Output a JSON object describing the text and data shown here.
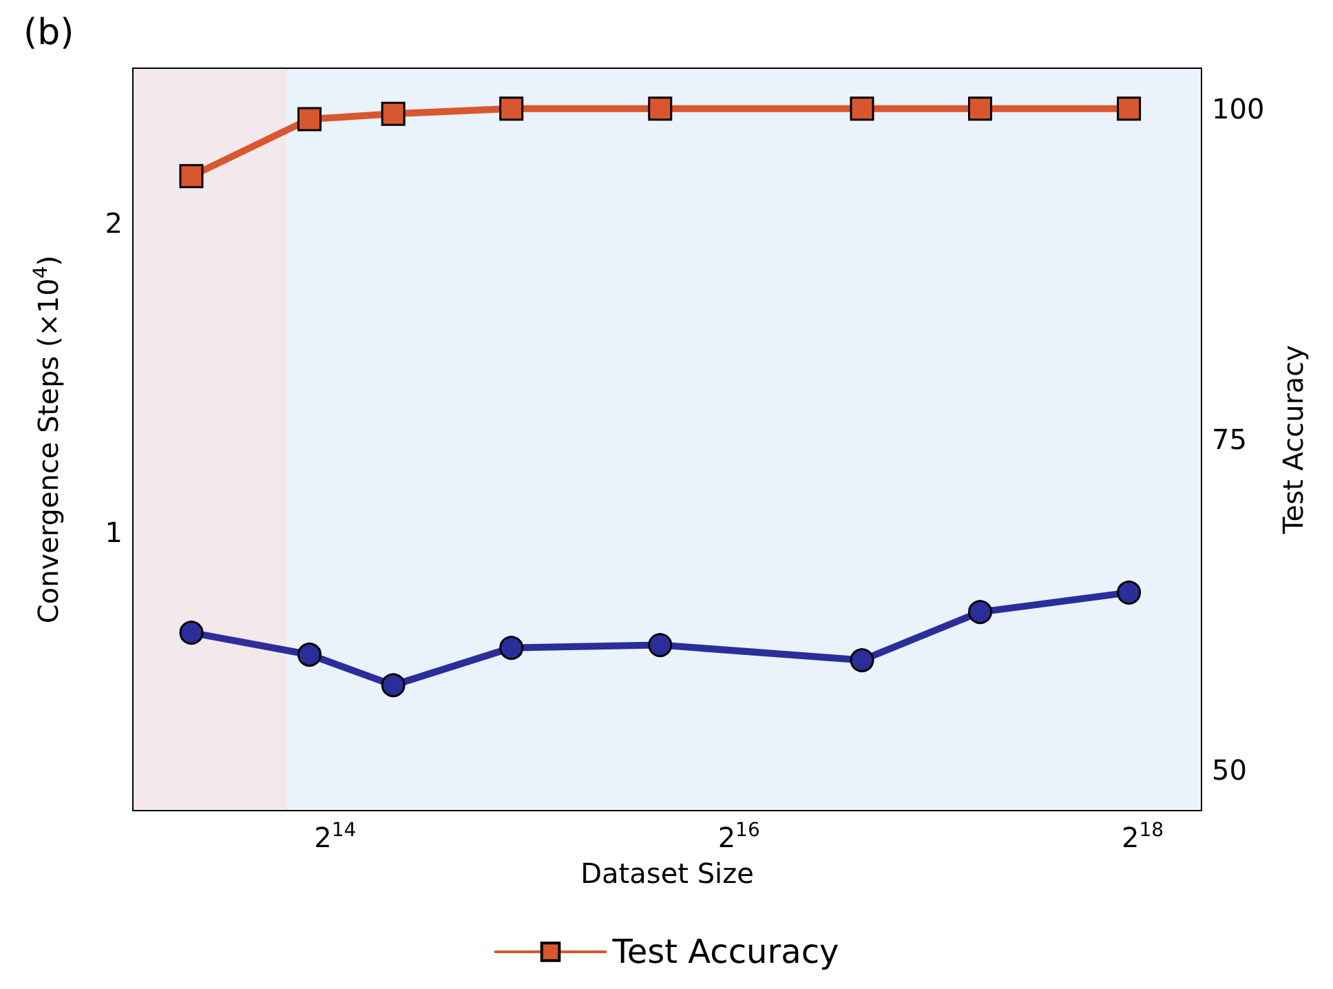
{
  "chart_data": {
    "type": "line",
    "title": "(b)",
    "xlabel": "Dataset Size",
    "ylabel": "Convergence Steps (×10$^{4}$)",
    "y2label": "Test Accuracy",
    "x": [
      10000,
      15000,
      20000,
      30000,
      50000,
      100000,
      150000,
      250000
    ],
    "log": "x",
    "xlim": [
      8200,
      320000
    ],
    "xticks": [
      {
        "value": 16384,
        "label": "2$^{14}$"
      },
      {
        "value": 65536,
        "label": "2$^{16}$"
      },
      {
        "value": 262144,
        "label": "2$^{18}$"
      }
    ],
    "ylim": [
      0.1,
      2.5
    ],
    "yticks": [
      1,
      2
    ],
    "y2lim": [
      47,
      103
    ],
    "y2ticks": [
      50,
      75,
      100
    ],
    "series": [
      {
        "color": "#2b2d9a",
        "marker": "circle",
        "values": [
          0.674,
          0.603,
          0.504,
          0.625,
          0.634,
          0.585,
          0.741,
          0.804
        ]
      },
      {
        "name": "Test Accuracy",
        "color": "#d9572e",
        "marker": "square",
        "axis": "y2",
        "values": [
          94.9,
          99.2,
          99.6,
          100,
          100,
          100,
          100,
          100
        ]
      }
    ],
    "bands": [
      {
        "axis": "x",
        "from": 8200,
        "to": 13900,
        "color": "#f3e8ec"
      },
      {
        "axis": "x",
        "from": 13900,
        "to": 320000,
        "color": "#eaf2fb"
      }
    ],
    "grid": false,
    "legend": "bottom",
    "line_style": "solid"
  }
}
